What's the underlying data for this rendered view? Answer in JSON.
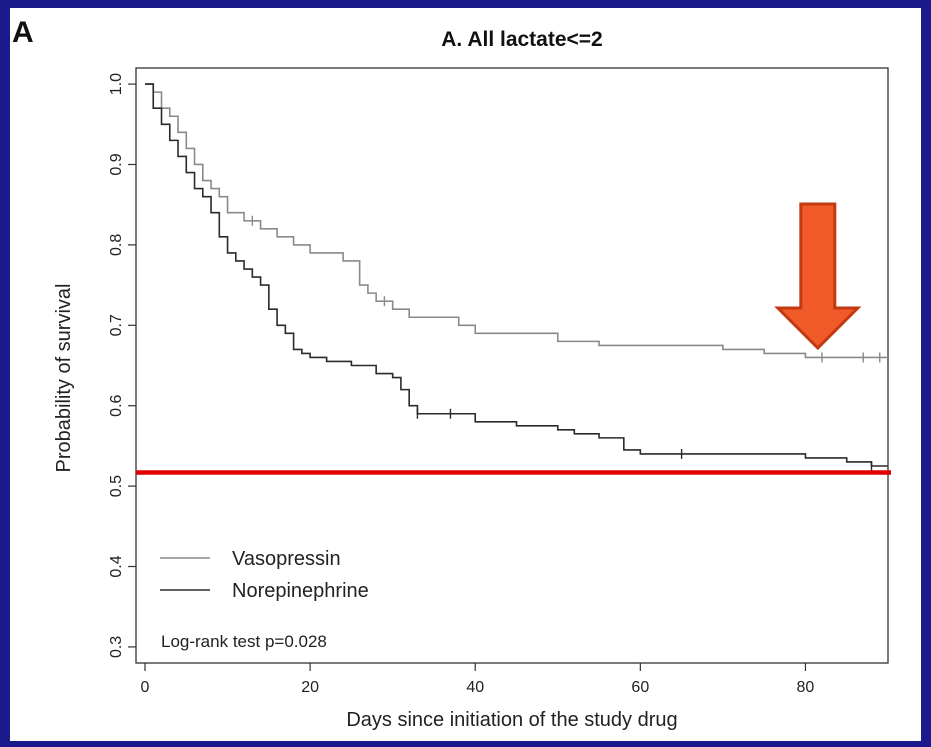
{
  "colors": {
    "frame_background": "#1a1a8c",
    "panel_background": "#ffffff",
    "vasopressin_line": "#8a8a8a",
    "norepinephrine_line": "#2a2a2a",
    "reference_line": "#e00000",
    "arrow_fill": "#f05a28",
    "arrow_stroke": "#c23a12"
  },
  "chart_data": {
    "type": "line",
    "panel_letter": "A",
    "title": "A. All lactate<=2",
    "xlabel": "Days since initiation of the study drug",
    "ylabel": "Probability of survival",
    "xlim": [
      0,
      90
    ],
    "ylim": [
      0.28,
      1.02
    ],
    "xticks": [
      0,
      20,
      40,
      60,
      80
    ],
    "xtick_labels": [
      "0",
      "20",
      "40",
      "60",
      "80"
    ],
    "yticks": [
      0.3,
      0.4,
      0.5,
      0.6,
      0.7,
      0.8,
      0.9,
      1.0
    ],
    "ytick_labels": [
      "0.3",
      "0.4",
      "0.5",
      "0.6",
      "0.7",
      "0.8",
      "0.9",
      "1.0"
    ],
    "grid": false,
    "legend_position": "bottom-left",
    "annotation": "Log-rank test p=0.028",
    "series": [
      {
        "name": "Vasopressin",
        "color_key": "vasopressin_line",
        "x": [
          0,
          1,
          2,
          3,
          4,
          5,
          6,
          7,
          8,
          9,
          10,
          12,
          14,
          16,
          18,
          20,
          22,
          24,
          26,
          27,
          28,
          30,
          32,
          35,
          38,
          40,
          45,
          50,
          55,
          60,
          65,
          70,
          75,
          80,
          85,
          90
        ],
        "y": [
          1.0,
          0.99,
          0.97,
          0.96,
          0.94,
          0.92,
          0.9,
          0.88,
          0.87,
          0.86,
          0.84,
          0.83,
          0.82,
          0.81,
          0.8,
          0.79,
          0.79,
          0.78,
          0.75,
          0.74,
          0.73,
          0.72,
          0.71,
          0.71,
          0.7,
          0.69,
          0.69,
          0.68,
          0.675,
          0.675,
          0.675,
          0.67,
          0.665,
          0.66,
          0.66,
          0.66
        ],
        "censor_x": [
          13,
          29,
          82,
          87,
          89
        ]
      },
      {
        "name": "Norepinephrine",
        "color_key": "norepinephrine_line",
        "x": [
          0,
          1,
          2,
          3,
          4,
          5,
          6,
          7,
          8,
          9,
          10,
          11,
          12,
          13,
          14,
          15,
          16,
          17,
          18,
          19,
          20,
          22,
          25,
          28,
          30,
          31,
          32,
          33,
          35,
          38,
          40,
          45,
          50,
          52,
          55,
          58,
          60,
          65,
          70,
          75,
          80,
          85,
          88,
          90
        ],
        "y": [
          1.0,
          0.97,
          0.95,
          0.93,
          0.91,
          0.89,
          0.87,
          0.86,
          0.84,
          0.81,
          0.79,
          0.78,
          0.77,
          0.76,
          0.75,
          0.72,
          0.7,
          0.69,
          0.67,
          0.665,
          0.66,
          0.655,
          0.65,
          0.64,
          0.635,
          0.62,
          0.6,
          0.59,
          0.59,
          0.59,
          0.58,
          0.575,
          0.57,
          0.565,
          0.56,
          0.545,
          0.54,
          0.54,
          0.54,
          0.54,
          0.535,
          0.53,
          0.525,
          0.525
        ],
        "censor_x": [
          33,
          37,
          65,
          88
        ]
      }
    ],
    "reference_line_y": 0.517,
    "arrow_x": 81.5
  }
}
